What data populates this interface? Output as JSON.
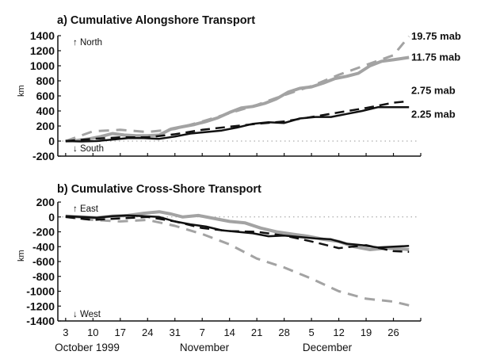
{
  "chart_data": [
    {
      "type": "line",
      "title": "a) Cumulative Alongshore Transport",
      "ylabel": "km",
      "ylim": [
        -200,
        1400
      ],
      "yticks": [
        "1400",
        "1200",
        "1000",
        "800",
        "600",
        "400",
        "200",
        "0",
        "-200"
      ],
      "ytick_values": [
        1400,
        1200,
        1000,
        800,
        600,
        400,
        200,
        0,
        -200
      ],
      "annotations": {
        "up": "↑ North",
        "down": "↓ South"
      },
      "x_unit": "days since 3 October 1999",
      "xlim": [
        -2,
        91
      ],
      "series": [
        {
          "name": "19.75 mab",
          "style": "gray-dash",
          "color": "#a0a0a0",
          "x": [
            0,
            7,
            14,
            21,
            28,
            35,
            42,
            49,
            56,
            63,
            70,
            77,
            84,
            88
          ],
          "y": [
            0,
            130,
            150,
            120,
            160,
            260,
            370,
            480,
            610,
            730,
            880,
            1010,
            1140,
            1390
          ]
        },
        {
          "name": "11.75 mab",
          "style": "gray-solid",
          "color": "#a0a0a0",
          "x": [
            0,
            3,
            6,
            9,
            12,
            15,
            18,
            21,
            24,
            27,
            30,
            33,
            36,
            39,
            42,
            45,
            48,
            51,
            54,
            57,
            60,
            63,
            66,
            69,
            72,
            75,
            78,
            81,
            84,
            88
          ],
          "y": [
            0,
            10,
            30,
            60,
            100,
            80,
            70,
            70,
            80,
            160,
            190,
            220,
            260,
            310,
            380,
            440,
            460,
            500,
            560,
            650,
            700,
            720,
            770,
            830,
            860,
            900,
            1000,
            1060,
            1080,
            1110
          ]
        },
        {
          "name": "2.75 mab",
          "style": "black-dash",
          "color": "#111111",
          "x": [
            0,
            7,
            14,
            21,
            28,
            35,
            42,
            49,
            56,
            63,
            70,
            77,
            84,
            88
          ],
          "y": [
            0,
            30,
            50,
            50,
            90,
            150,
            190,
            230,
            260,
            320,
            380,
            440,
            510,
            530
          ]
        },
        {
          "name": "2.25 mab",
          "style": "black-solid",
          "color": "#111111",
          "x": [
            0,
            4,
            8,
            12,
            16,
            20,
            24,
            28,
            32,
            36,
            40,
            44,
            48,
            52,
            56,
            60,
            64,
            68,
            72,
            76,
            80,
            84,
            88
          ],
          "y": [
            0,
            -5,
            0,
            20,
            40,
            40,
            30,
            60,
            100,
            120,
            140,
            180,
            230,
            250,
            240,
            300,
            320,
            320,
            360,
            400,
            450,
            450,
            450
          ]
        }
      ],
      "series_labels": [
        "19.75 mab",
        "11.75 mab",
        "2.75 mab",
        "2.25 mab"
      ]
    },
    {
      "type": "line",
      "title": "b) Cumulative Cross-Shore Transport",
      "ylabel": "km",
      "ylim": [
        -1400,
        200
      ],
      "yticks": [
        "200",
        "0",
        "-200",
        "-400",
        "-600",
        "-800",
        "-1000",
        "-1200",
        "-1400"
      ],
      "ytick_values": [
        200,
        0,
        -200,
        -400,
        -600,
        -800,
        -1000,
        -1200,
        -1400
      ],
      "annotations": {
        "up": "↑ East",
        "down": "↓ West"
      },
      "xlim": [
        -2,
        91
      ],
      "xticks": [
        "3",
        "10",
        "17",
        "24",
        "31",
        "7",
        "14",
        "21",
        "28",
        "5",
        "12",
        "19",
        "26"
      ],
      "xtick_values": [
        0,
        7,
        14,
        21,
        28,
        35,
        42,
        49,
        56,
        63,
        70,
        77,
        84
      ],
      "months": [
        {
          "label": "October 1999",
          "x": 14
        },
        {
          "label": "November",
          "x": 42
        },
        {
          "label": "December",
          "x": 70
        }
      ],
      "series": [
        {
          "name": "19.75 mab",
          "style": "gray-dash",
          "color": "#a0a0a0",
          "x": [
            0,
            7,
            14,
            21,
            28,
            35,
            42,
            49,
            56,
            63,
            70,
            77,
            84,
            88
          ],
          "y": [
            0,
            -40,
            -60,
            -40,
            -120,
            -230,
            -370,
            -560,
            -680,
            -830,
            -1000,
            -1100,
            -1140,
            -1190
          ]
        },
        {
          "name": "11.75 mab",
          "style": "gray-solid",
          "color": "#a0a0a0",
          "x": [
            0,
            4,
            8,
            12,
            16,
            20,
            24,
            27,
            30,
            34,
            38,
            42,
            46,
            50,
            54,
            58,
            62,
            66,
            70,
            74,
            78,
            82,
            86,
            88
          ],
          "y": [
            10,
            0,
            -10,
            10,
            20,
            50,
            70,
            40,
            0,
            20,
            -20,
            -60,
            -80,
            -150,
            -200,
            -230,
            -260,
            -300,
            -330,
            -400,
            -440,
            -420,
            -430,
            -440
          ]
        },
        {
          "name": "2.75 mab",
          "style": "black-dash",
          "color": "#111111",
          "x": [
            0,
            7,
            14,
            21,
            28,
            35,
            42,
            49,
            56,
            63,
            70,
            77,
            84,
            88
          ],
          "y": [
            0,
            -40,
            -20,
            0,
            -60,
            -150,
            -190,
            -200,
            -250,
            -330,
            -420,
            -380,
            -460,
            -470
          ]
        },
        {
          "name": "2.25 mab",
          "style": "black-solid",
          "color": "#111111",
          "x": [
            0,
            4,
            8,
            12,
            16,
            20,
            24,
            28,
            32,
            36,
            40,
            44,
            48,
            52,
            56,
            60,
            64,
            68,
            72,
            76,
            80,
            84,
            88
          ],
          "y": [
            10,
            0,
            -10,
            10,
            20,
            10,
            0,
            -60,
            -100,
            -130,
            -180,
            -200,
            -220,
            -260,
            -250,
            -270,
            -290,
            -300,
            -360,
            -380,
            -410,
            -400,
            -390
          ]
        }
      ]
    }
  ]
}
